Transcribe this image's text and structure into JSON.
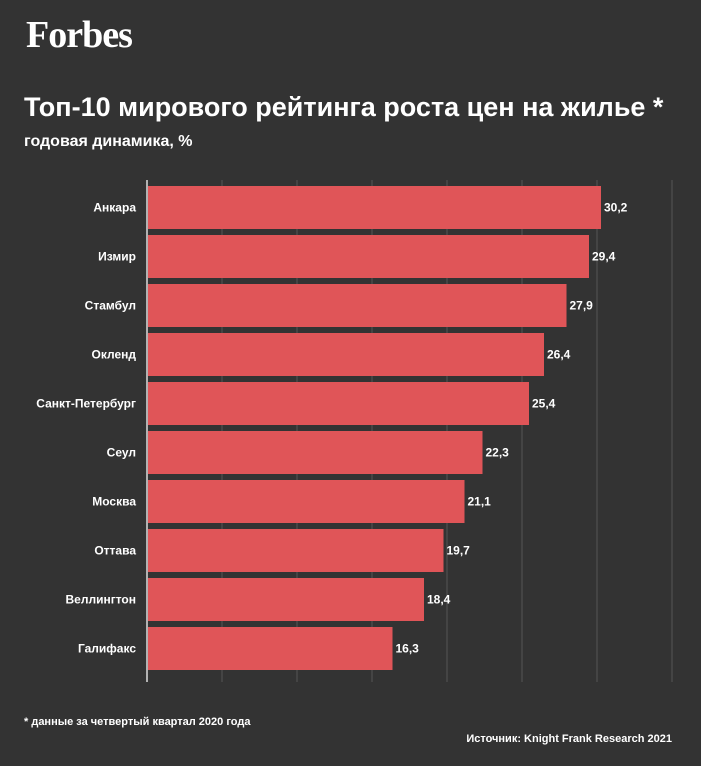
{
  "brand": {
    "logo_text": "Forbes"
  },
  "header": {
    "title": "Топ-10 мирового рейтинга роста цен на жилье *",
    "subtitle": "годовая динамика, %"
  },
  "footer": {
    "footnote": "* данные за четвертый квартал 2020 года",
    "source": "Источник: Knight Frank Research 2021"
  },
  "colors": {
    "background": "#333333",
    "bar": "#e05558",
    "grid": "#555555",
    "text": "#ffffff"
  },
  "chart_data": {
    "type": "bar",
    "orientation": "horizontal",
    "title": "Топ-10 мирового рейтинга роста цен на жилье *",
    "subtitle": "годовая динамика, %",
    "xlabel": "",
    "ylabel": "",
    "categories": [
      "Анкара",
      "Измир",
      "Стамбул",
      "Окленд",
      "Санкт-Петербург",
      "Сеул",
      "Москва",
      "Оттава",
      "Веллингтон",
      "Галифакс"
    ],
    "values": [
      30.2,
      29.4,
      27.9,
      26.4,
      25.4,
      22.3,
      21.1,
      19.7,
      18.4,
      16.3
    ],
    "value_labels": [
      "30,2",
      "29,4",
      "27,9",
      "26,4",
      "25,4",
      "22,3",
      "21,1",
      "19,7",
      "18,4",
      "16,3"
    ],
    "xlim": [
      0,
      35
    ],
    "grid": true,
    "legend": "none"
  }
}
